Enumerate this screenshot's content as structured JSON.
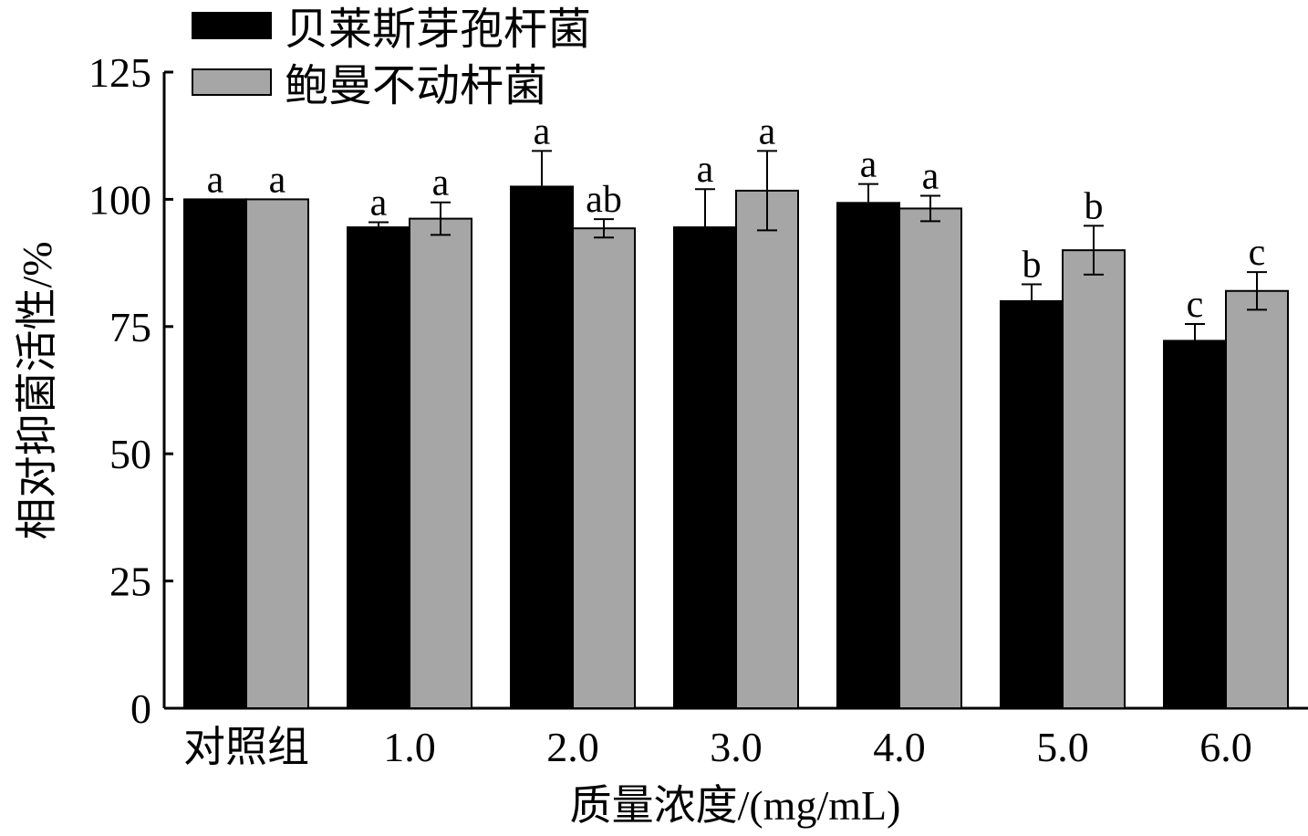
{
  "chart_data": {
    "type": "bar",
    "title": "",
    "xlabel": "质量浓度/(mg/mL)",
    "ylabel": "相对抑菌活性/%",
    "ylim": [
      0,
      125
    ],
    "yticks": [
      0,
      25,
      50,
      75,
      100,
      125
    ],
    "categories": [
      "对照组",
      "1.0",
      "2.0",
      "3.0",
      "4.0",
      "5.0",
      "6.0"
    ],
    "legend_position": "top-left",
    "grid": false,
    "series": [
      {
        "name": "贝莱斯芽孢杆菌",
        "color": "#000000",
        "values": [
          100,
          94.5,
          102.5,
          94.5,
          99.3,
          80.0,
          72.2
        ],
        "errors": [
          0,
          1.0,
          7.0,
          7.5,
          3.7,
          3.3,
          3.3
        ],
        "labels": [
          "a",
          "a",
          "a",
          "a",
          "a",
          "b",
          "c"
        ]
      },
      {
        "name": "鲍曼不动杆菌",
        "color": "#a6a6a6",
        "values": [
          100,
          96.2,
          94.3,
          101.7,
          98.2,
          90.0,
          82.0
        ],
        "errors": [
          0,
          3.2,
          1.8,
          7.8,
          2.5,
          4.8,
          3.7
        ],
        "labels": [
          "a",
          "a",
          "ab",
          "a",
          "a",
          "b",
          "c"
        ]
      }
    ]
  }
}
